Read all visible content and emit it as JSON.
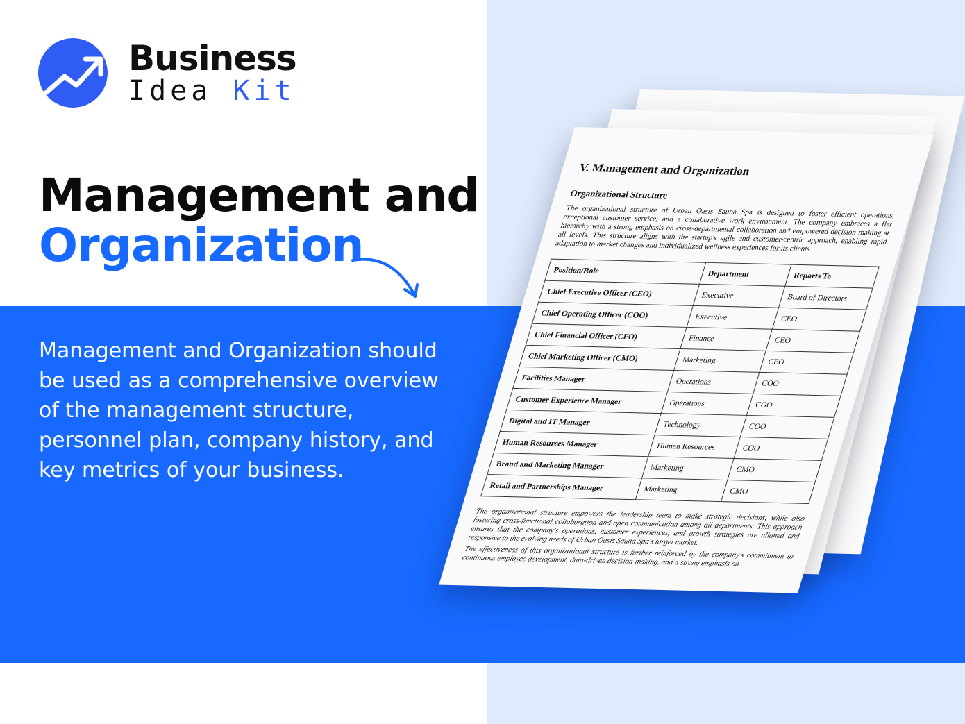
{
  "brand": {
    "line1": "Business",
    "line2_a": "Idea",
    "line2_b": "Kit",
    "accent": "#2f5cf5"
  },
  "headline": {
    "line1": "Management and",
    "line2": "Organization"
  },
  "description": "Management and Organization should be used as a comprehensive overview of the management structure, personnel plan, company history, and key metrics of your business.",
  "colors": {
    "band": "#1769ff",
    "right_bg": "#dfeafc"
  },
  "document": {
    "title": "V. Management and Organization",
    "subtitle": "Organizational Structure",
    "paragraph": "The organizational structure of Urban Oasis Sauna Spa is designed to foster efficient operations, exceptional customer service, and a collaborative work environment. The company embraces a flat hierarchy with a strong emphasis on cross-departmental collaboration and empowered decision-making at all levels. This structure aligns with the startup's agile and customer-centric approach, enabling rapid adaptation to market changes and individualized wellness experiences for its clients.",
    "table": {
      "headers": [
        "Position/Role",
        "Department",
        "Reports To"
      ],
      "rows": [
        [
          "Chief Executive Officer (CEO)",
          "Executive",
          "Board of Directors"
        ],
        [
          "Chief Operating Officer (COO)",
          "Executive",
          "CEO"
        ],
        [
          "Chief Financial Officer (CFO)",
          "Finance",
          "CEO"
        ],
        [
          "Chief Marketing Officer (CMO)",
          "Marketing",
          "CEO"
        ],
        [
          "Facilities Manager",
          "Operations",
          "COO"
        ],
        [
          "Customer Experience Manager",
          "Operations",
          "COO"
        ],
        [
          "Digital and IT Manager",
          "Technology",
          "COO"
        ],
        [
          "Human Resources Manager",
          "Human Resources",
          "COO"
        ],
        [
          "Brand and Marketing Manager",
          "Marketing",
          "CMO"
        ],
        [
          "Retail and Partnerships Manager",
          "Marketing",
          "CMO"
        ]
      ]
    },
    "footer_1": "The organizational structure empowers the leadership team to make strategic decisions, while also fostering cross-functional collaboration and open communication among all departments. This approach ensures that the company's operations, customer experiences, and growth strategies are aligned and responsive to the evolving needs of Urban Oasis Sauna Spa's target market.",
    "footer_2": "The effectiveness of this organizational structure is further reinforced by the company's commitment to continuous employee development, data-driven decision-making, and a strong emphasis on"
  }
}
